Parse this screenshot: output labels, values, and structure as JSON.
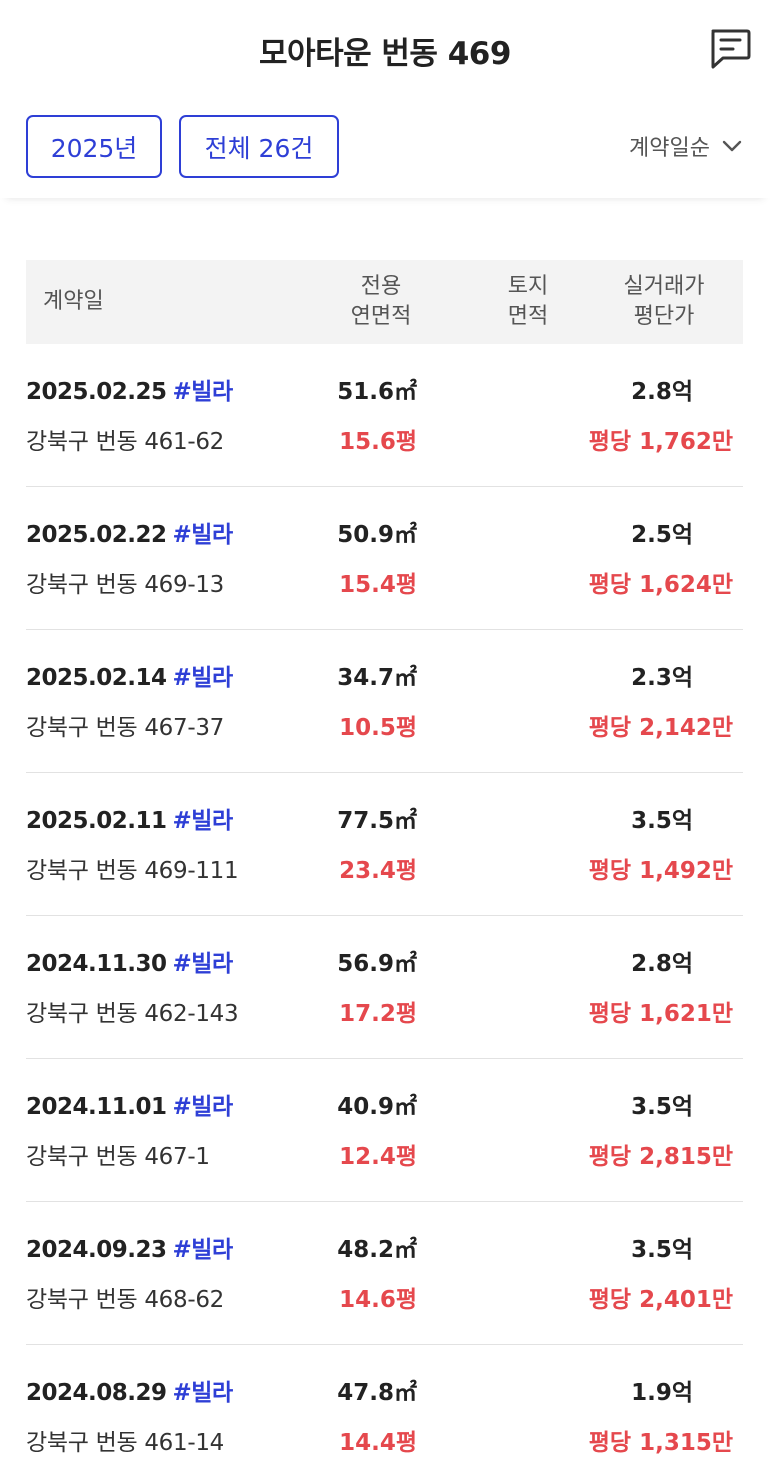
{
  "header": {
    "title": "모아타운 번동 469",
    "chat_icon": "chat-bubble-icon"
  },
  "filters": {
    "year_label": "2025년",
    "total_label": "전체 26건",
    "sort_label": "계약일순"
  },
  "table": {
    "headers": {
      "date": "계약일",
      "area_line1": "전용",
      "area_line2": "연면적",
      "land_line1": "토지",
      "land_line2": "면적",
      "price_line1": "실거래가",
      "price_line2": "평단가"
    },
    "rows": [
      {
        "date": "2025.02.25",
        "tag": "#빌라",
        "address": "강북구 번동 461-62",
        "area": "51.6㎡",
        "pyeong": "15.6평",
        "price": "2.8억",
        "unit_price": "평당 1,762만"
      },
      {
        "date": "2025.02.22",
        "tag": "#빌라",
        "address": "강북구 번동 469-13",
        "area": "50.9㎡",
        "pyeong": "15.4평",
        "price": "2.5억",
        "unit_price": "평당 1,624만"
      },
      {
        "date": "2025.02.14",
        "tag": "#빌라",
        "address": "강북구 번동 467-37",
        "area": "34.7㎡",
        "pyeong": "10.5평",
        "price": "2.3억",
        "unit_price": "평당 2,142만"
      },
      {
        "date": "2025.02.11",
        "tag": "#빌라",
        "address": "강북구 번동 469-111",
        "area": "77.5㎡",
        "pyeong": "23.4평",
        "price": "3.5억",
        "unit_price": "평당 1,492만"
      },
      {
        "date": "2024.11.30",
        "tag": "#빌라",
        "address": "강북구 번동 462-143",
        "area": "56.9㎡",
        "pyeong": "17.2평",
        "price": "2.8억",
        "unit_price": "평당 1,621만"
      },
      {
        "date": "2024.11.01",
        "tag": "#빌라",
        "address": "강북구 번동 467-1",
        "area": "40.9㎡",
        "pyeong": "12.4평",
        "price": "3.5억",
        "unit_price": "평당 2,815만"
      },
      {
        "date": "2024.09.23",
        "tag": "#빌라",
        "address": "강북구 번동 468-62",
        "area": "48.2㎡",
        "pyeong": "14.6평",
        "price": "3.5억",
        "unit_price": "평당 2,401만"
      },
      {
        "date": "2024.08.29",
        "tag": "#빌라",
        "address": "강북구 번동 461-14",
        "area": "47.8㎡",
        "pyeong": "14.4평",
        "price": "1.9억",
        "unit_price": "평당 1,315만"
      }
    ]
  },
  "colors": {
    "accent": "#2e3fd6",
    "highlight": "#e5484d",
    "header_bg": "#f3f3f3"
  }
}
